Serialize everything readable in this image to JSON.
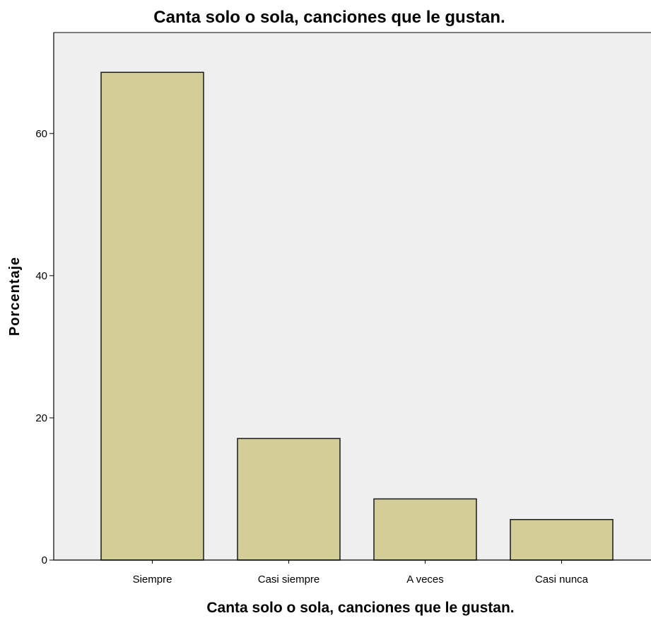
{
  "chart_data": {
    "type": "bar",
    "title": "Canta solo o sola, canciones que le gustan.",
    "xlabel": "Canta solo o sola, canciones que le gustan.",
    "ylabel": "Porcentaje",
    "categories": [
      "Siempre",
      "Casi siempre",
      "A veces",
      "Casi nunca"
    ],
    "values": [
      68.6,
      17.1,
      8.6,
      5.7
    ],
    "ylim": [
      0,
      74.2
    ],
    "yticks": [
      0,
      20,
      40,
      60
    ],
    "grid": false,
    "colors": {
      "bar_fill": "#d3cd97",
      "bar_stroke": "#1a1a1a",
      "plot_background": "#efefef",
      "axis": "#000000"
    }
  }
}
